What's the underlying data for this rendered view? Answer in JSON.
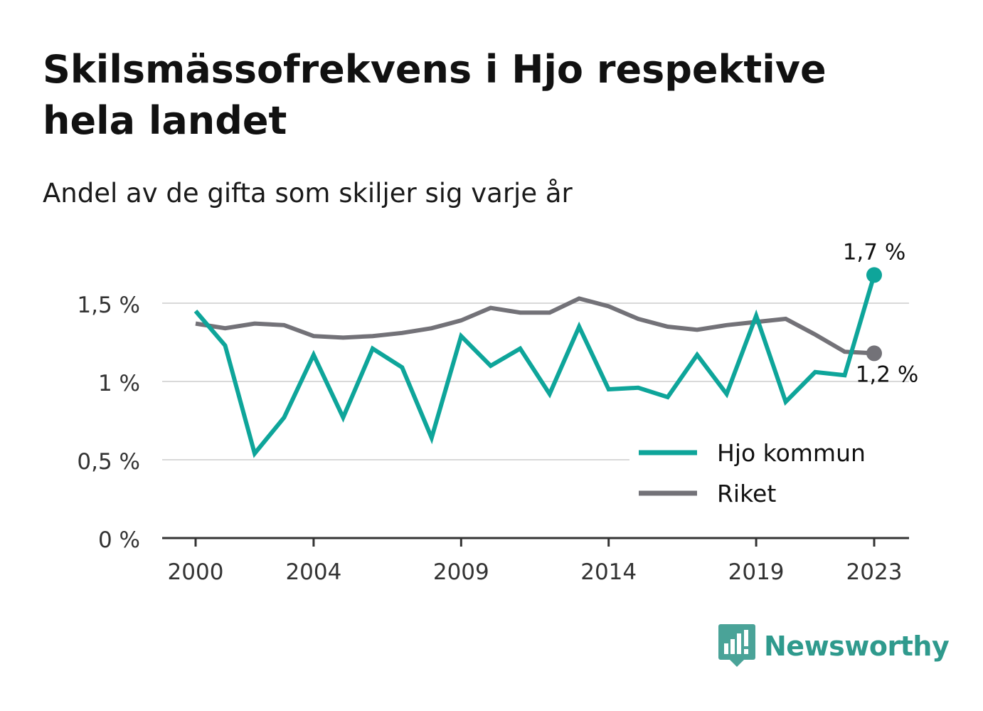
{
  "title": "Skilsmässofrekvens i Hjo respektive hela landet",
  "subtitle": "Andel av de gifta som skiljer sig varje år",
  "brand": {
    "name": "Newsworthy",
    "logo_icon": "newsworthy-logo-icon",
    "color": "#2f9a8d"
  },
  "chart_data": {
    "type": "line",
    "x": [
      2000,
      2001,
      2002,
      2003,
      2004,
      2005,
      2006,
      2007,
      2008,
      2009,
      2010,
      2011,
      2012,
      2013,
      2014,
      2015,
      2016,
      2017,
      2018,
      2019,
      2020,
      2021,
      2022,
      2023
    ],
    "x_tick_labels": [
      "2000",
      "2004",
      "2009",
      "2014",
      "2019",
      "2023"
    ],
    "y_tick_labels": [
      "0 %",
      "0,5 %",
      "1 %",
      "1,5 %"
    ],
    "ylim": [
      0,
      1.8
    ],
    "grid": true,
    "legend_position": "bottom-right",
    "series": [
      {
        "name": "Hjo kommun",
        "color": "#0ea59a",
        "values": [
          1.45,
          1.23,
          0.54,
          0.77,
          1.17,
          0.77,
          1.21,
          1.09,
          0.64,
          1.29,
          1.1,
          1.21,
          0.92,
          1.35,
          0.95,
          0.96,
          0.9,
          1.17,
          0.92,
          1.42,
          0.87,
          1.06,
          1.04,
          1.68
        ],
        "end_label": "1,7 %"
      },
      {
        "name": "Riket",
        "color": "#737278",
        "values": [
          1.37,
          1.34,
          1.37,
          1.36,
          1.29,
          1.28,
          1.29,
          1.31,
          1.34,
          1.39,
          1.47,
          1.44,
          1.44,
          1.53,
          1.48,
          1.4,
          1.35,
          1.33,
          1.36,
          1.38,
          1.4,
          1.3,
          1.19,
          1.18
        ],
        "end_label": "1,2 %"
      }
    ]
  }
}
